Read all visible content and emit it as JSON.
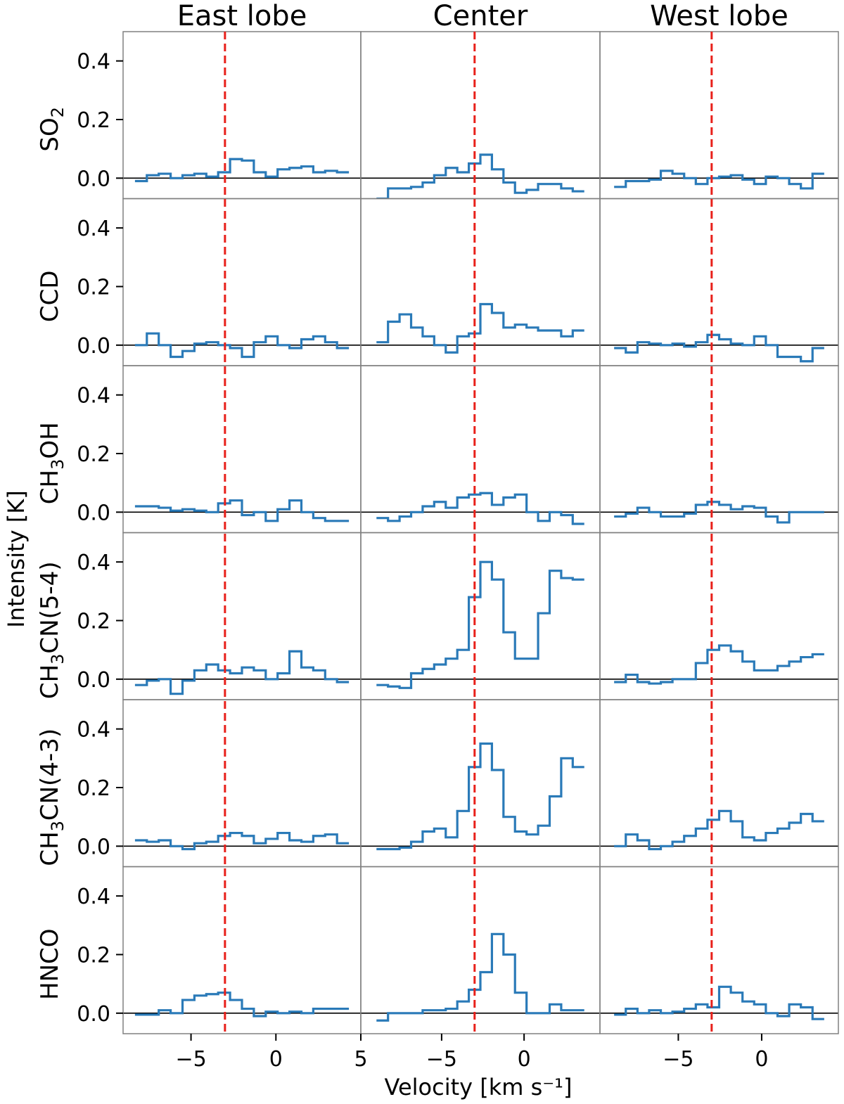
{
  "chart_data": {
    "type": "line",
    "style": "step",
    "columns": [
      {
        "title": "East lobe",
        "xlim": [
          -9,
          5
        ],
        "xticks": [
          -5,
          0,
          5
        ],
        "ref_velocity": -3.0
      },
      {
        "title": "Center",
        "xlim": [
          -9.9,
          4.6
        ],
        "xticks": [
          -5,
          0
        ],
        "ref_velocity": -3.0
      },
      {
        "title": "West lobe",
        "xlim": [
          -9.7,
          4.6
        ],
        "xticks": [
          -5,
          0
        ],
        "ref_velocity": -3.0
      }
    ],
    "rows": [
      {
        "label": "SO",
        "sub": "2",
        "suffix": ""
      },
      {
        "label": "CCD",
        "sub": "",
        "suffix": ""
      },
      {
        "label": "CH",
        "sub": "3",
        "suffix": "OH"
      },
      {
        "label": "CH",
        "sub": "3",
        "suffix": "CN(5-4)"
      },
      {
        "label": "CH",
        "sub": "3",
        "suffix": "CN(4-3)"
      },
      {
        "label": "HNCO",
        "sub": "",
        "suffix": ""
      }
    ],
    "ylim": [
      -0.07,
      0.5
    ],
    "yticks": [
      0.0,
      0.2,
      0.4
    ],
    "ytick_labels": [
      "0.0",
      "0.2",
      "0.4"
    ],
    "xtick_labels": {
      "-5": "−5",
      "0": "0",
      "5": "5"
    },
    "xlabel": "Velocity [km s⁻¹]",
    "ylabel": "Intensity [K]",
    "channel_width_kms": 0.7,
    "panels": {
      "0": {
        "0": [
          -0.01,
          0.01,
          0.015,
          0.0,
          0.01,
          0.015,
          0.005,
          0.02,
          0.065,
          0.06,
          0.02,
          0.005,
          0.03,
          0.035,
          0.04,
          0.02,
          0.025,
          0.02
        ],
        "1": [
          0.0,
          0.04,
          0.0,
          -0.04,
          -0.02,
          0.005,
          0.01,
          0.0,
          -0.01,
          -0.04,
          0.01,
          0.03,
          0.0,
          -0.01,
          0.02,
          0.03,
          0.01,
          -0.01
        ],
        "2": [
          0.02,
          0.02,
          0.015,
          0.005,
          0.01,
          0.005,
          0.0,
          0.03,
          0.04,
          -0.01,
          0.0,
          -0.03,
          0.01,
          0.04,
          0.0,
          -0.02,
          -0.03,
          -0.03
        ],
        "3": [
          -0.02,
          -0.005,
          0.0,
          -0.05,
          -0.005,
          0.03,
          0.05,
          0.03,
          0.02,
          0.04,
          0.03,
          0.0,
          0.02,
          0.095,
          0.04,
          0.03,
          0.0,
          -0.01
        ],
        "4": [
          0.02,
          0.015,
          0.02,
          0.0,
          -0.01,
          0.01,
          0.015,
          0.035,
          0.045,
          0.035,
          0.01,
          0.025,
          0.045,
          0.02,
          0.015,
          0.035,
          0.04,
          0.01
        ],
        "5": [
          -0.005,
          -0.005,
          0.01,
          0.0,
          0.045,
          0.06,
          0.065,
          0.07,
          0.045,
          0.015,
          -0.01,
          0.005,
          0.0,
          0.005,
          0.0,
          0.015,
          0.015,
          0.015
        ]
      },
      "1": {
        "0": [
          -0.07,
          -0.035,
          -0.035,
          -0.03,
          -0.015,
          0.01,
          0.035,
          0.02,
          0.05,
          0.08,
          0.03,
          -0.015,
          -0.05,
          -0.04,
          -0.02,
          -0.02,
          -0.035,
          -0.045
        ],
        "1": [
          0.01,
          0.08,
          0.105,
          0.06,
          0.03,
          0.0,
          -0.025,
          0.03,
          0.04,
          0.14,
          0.11,
          0.06,
          0.07,
          0.06,
          0.05,
          0.05,
          0.03,
          0.05
        ],
        "2": [
          -0.02,
          -0.03,
          -0.015,
          0.0,
          0.02,
          0.035,
          0.015,
          0.05,
          0.06,
          0.065,
          0.025,
          0.05,
          0.06,
          0.0,
          -0.03,
          0.0,
          -0.01,
          -0.04
        ],
        "3": [
          -0.02,
          -0.025,
          -0.03,
          0.02,
          0.035,
          0.05,
          0.07,
          0.1,
          0.28,
          0.4,
          0.34,
          0.16,
          0.07,
          0.07,
          0.225,
          0.37,
          0.345,
          0.34
        ],
        "4": [
          -0.01,
          -0.01,
          -0.005,
          0.015,
          0.05,
          0.06,
          0.03,
          0.12,
          0.27,
          0.35,
          0.26,
          0.1,
          0.05,
          0.04,
          0.07,
          0.17,
          0.3,
          0.27
        ],
        "5": [
          -0.025,
          0.0,
          0.0,
          0.0,
          0.01,
          0.01,
          0.015,
          0.04,
          0.08,
          0.14,
          0.27,
          0.2,
          0.07,
          0.0,
          0.0,
          0.03,
          0.01,
          0.01
        ]
      },
      "2": {
        "0": [
          -0.03,
          -0.01,
          -0.01,
          -0.005,
          0.025,
          0.015,
          0.0,
          -0.02,
          0.0,
          0.005,
          0.01,
          -0.005,
          -0.02,
          0.005,
          0.0,
          -0.02,
          -0.035,
          0.015
        ],
        "1": [
          -0.01,
          -0.025,
          0.01,
          0.005,
          0.0,
          0.005,
          -0.005,
          0.01,
          0.035,
          0.02,
          0.005,
          0.0,
          0.03,
          0.0,
          -0.04,
          -0.04,
          -0.055,
          -0.01
        ],
        "2": [
          -0.015,
          -0.005,
          0.015,
          0.0,
          -0.015,
          -0.015,
          -0.005,
          0.025,
          0.035,
          0.025,
          0.01,
          0.02,
          0.015,
          -0.015,
          -0.035,
          0.0,
          0.0,
          0.0
        ],
        "3": [
          -0.01,
          0.015,
          -0.01,
          -0.015,
          -0.01,
          0.0,
          0.0,
          0.055,
          0.1,
          0.115,
          0.095,
          0.06,
          0.03,
          0.03,
          0.045,
          0.06,
          0.075,
          0.085
        ],
        "4": [
          0.0,
          0.04,
          0.02,
          -0.01,
          0.0,
          0.015,
          0.035,
          0.06,
          0.09,
          0.12,
          0.085,
          0.03,
          0.02,
          0.045,
          0.06,
          0.08,
          0.11,
          0.085
        ],
        "5": [
          -0.005,
          0.015,
          0.0,
          0.01,
          0.0,
          0.005,
          0.015,
          0.03,
          0.02,
          0.09,
          0.07,
          0.04,
          0.03,
          0.0,
          -0.01,
          0.03,
          0.02,
          -0.02
        ]
      }
    },
    "grid": false,
    "colors": {
      "spectrum": "#2a7ab8",
      "ref_line": "#e8201a",
      "frame": "#808080"
    }
  }
}
